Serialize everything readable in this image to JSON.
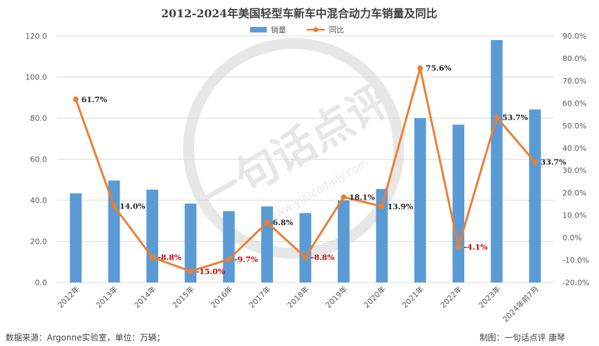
{
  "chart_data": {
    "type": "bar+line",
    "title": "2012-2024年美国轻型车新车中混合动力车销量及同比",
    "categories": [
      "2012年",
      "2013年",
      "2014年",
      "2015年",
      "2016年",
      "2017年",
      "2018年",
      "2019年",
      "2020年",
      "2021年",
      "2022年",
      "2023年",
      "2024年前7月"
    ],
    "series": [
      {
        "name": "销量",
        "type": "bar",
        "axis": "left",
        "color": "#5B9BD5",
        "values": [
          43.4,
          49.6,
          45.2,
          38.4,
          34.7,
          37.0,
          33.8,
          40.0,
          45.5,
          80.0,
          76.8,
          118.0,
          84.2
        ]
      },
      {
        "name": "同比",
        "type": "line",
        "axis": "right",
        "color": "#ED7D31",
        "values": [
          61.7,
          14.0,
          -8.8,
          -15.0,
          -9.7,
          6.8,
          -8.8,
          18.1,
          13.9,
          75.6,
          -4.1,
          53.7,
          33.7
        ],
        "labels": [
          "61.7%",
          "14.0%",
          "-8.8%",
          "-15.0%",
          "-9.7%",
          "6.8%",
          "-8.8%",
          "18.1%",
          "13.9%",
          "75.6%",
          "-4.1%",
          "53.7%",
          "33.7%"
        ]
      }
    ],
    "y_left": {
      "min": 0,
      "max": 120,
      "ticks": [
        "0.0",
        "20.0",
        "40.0",
        "60.0",
        "80.0",
        "100.0",
        "120.0"
      ]
    },
    "y_right": {
      "min": -20,
      "max": 90,
      "ticks": [
        "-20.0%",
        "-10.0%",
        "0.0%",
        "10.0%",
        "20.0%",
        "30.0%",
        "40.0%",
        "50.0%",
        "60.0%",
        "70.0%",
        "80.0%",
        "90.0%"
      ]
    },
    "label_colors": {
      "positive": "#262626",
      "negative": "#C00000"
    },
    "grid": true,
    "legend": "top-center"
  },
  "footer": {
    "source": "数据来源：Argonne实验室，单位：万辆；",
    "credit": "制图：一句话点评 康琴"
  },
  "watermark": {
    "text": "一句话点评",
    "url": "www.yijucodaily.com"
  }
}
